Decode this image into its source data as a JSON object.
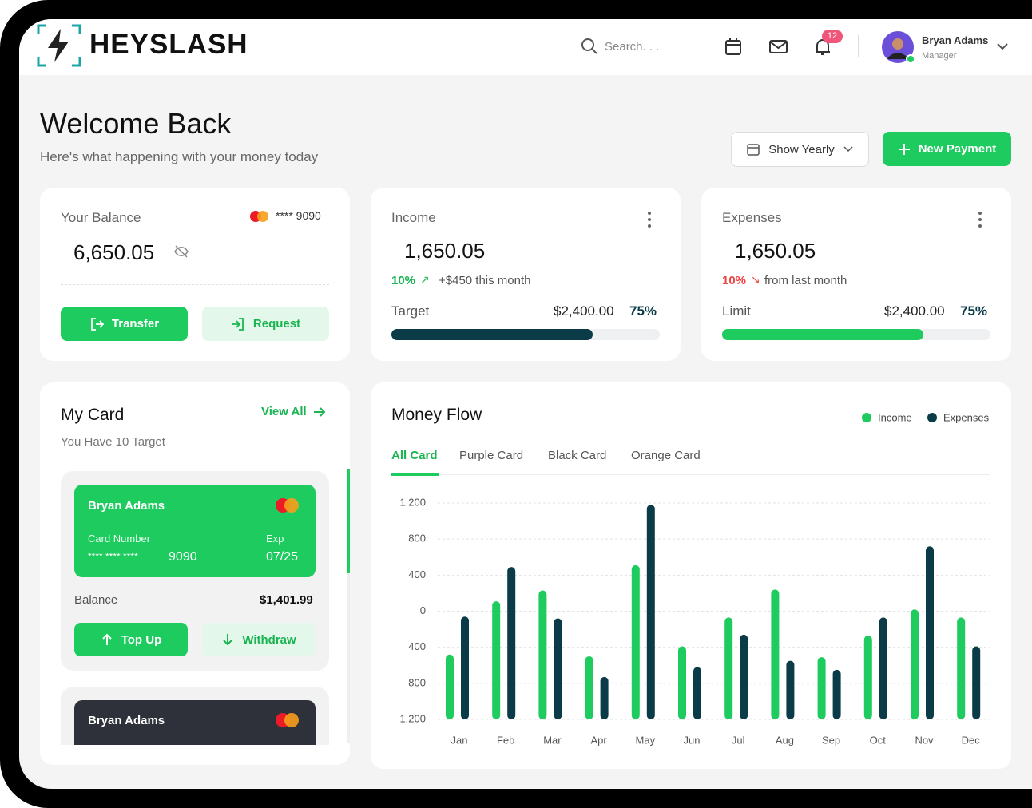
{
  "header": {
    "brand": "HEYSLASH",
    "search_placeholder": "Search. . .",
    "notification_count": 12,
    "user_name": "Bryan Adams",
    "user_role": "Manager"
  },
  "welcome": {
    "title": "Welcome Back",
    "subtitle": "Here's what happening with your money today",
    "filter": "Show Yearly",
    "new_payment": "New Payment"
  },
  "balance": {
    "label": "Your Balance",
    "card_mask": "**** 9090",
    "amount": "6,650.05",
    "transfer": "Transfer",
    "request": "Request"
  },
  "income": {
    "label": "Income",
    "amount": "1,650.05",
    "change": "10%",
    "change_note": "+$450 this month",
    "target_label": "Target",
    "target": "$2,400.00",
    "progress": "75%"
  },
  "expenses": {
    "label": "Expenses",
    "amount": "1,650.05",
    "change": "10%",
    "change_note": "from last month",
    "limit_label": "Limit",
    "limit": "$2,400.00",
    "progress": "75%"
  },
  "my_card": {
    "title": "My Card",
    "view_all": "View All",
    "subtitle": "You Have 10 Target",
    "cards": [
      {
        "holder": "Bryan Adams",
        "number_label": "Card Number",
        "number_mask": "**** **** ****",
        "number_last": "9090",
        "exp_label": "Exp",
        "exp": "07/25",
        "balance_label": "Balance",
        "balance": "$1,401.99",
        "top_up": "Top Up",
        "withdraw": "Withdraw"
      },
      {
        "holder": "Bryan Adams"
      }
    ]
  },
  "money_flow_tabs": [
    "All Card",
    "Purple Card",
    "Black Card",
    "Orange Card"
  ],
  "chart_data": {
    "type": "bar",
    "title": "Money Flow",
    "categories": [
      "Jan",
      "Feb",
      "Mar",
      "Apr",
      "May",
      "Jun",
      "Jul",
      "Aug",
      "Sep",
      "Oct",
      "Nov",
      "Dec"
    ],
    "series": [
      {
        "name": "Income",
        "color": "#1ecb5e",
        "values": [
          -480,
          110,
          230,
          -500,
          510,
          -390,
          -70,
          240,
          -510,
          -270,
          20,
          -70
        ]
      },
      {
        "name": "Expenses",
        "color": "#0b3b47",
        "values": [
          -60,
          490,
          -80,
          -730,
          1180,
          -620,
          -260,
          -550,
          -650,
          -70,
          720,
          -390
        ]
      }
    ],
    "ylim": [
      -1200,
      1200
    ],
    "yticks": [
      {
        "value": 1200,
        "label": "1.200"
      },
      800,
      400,
      0,
      {
        "value": -400,
        "label": "400"
      },
      {
        "value": -800,
        "label": "800"
      },
      {
        "value": -1200,
        "label": "1.200"
      }
    ],
    "grid": true,
    "legend": "top-right"
  }
}
